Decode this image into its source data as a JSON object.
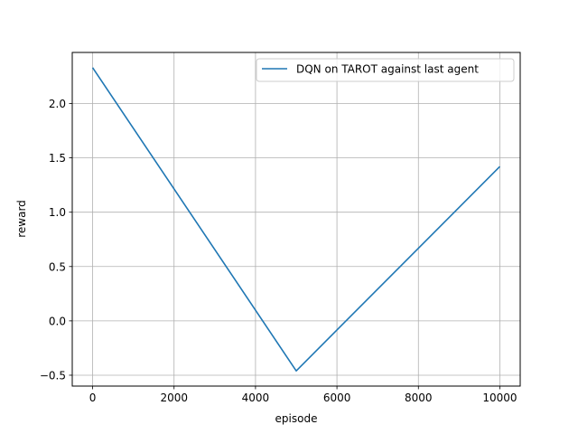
{
  "chart_data": {
    "type": "line",
    "title": "",
    "xlabel": "episode",
    "ylabel": "reward",
    "xlim": [
      -500,
      10500
    ],
    "ylim": [
      -0.6,
      2.47
    ],
    "xticks": [
      0,
      2000,
      4000,
      6000,
      8000,
      10000
    ],
    "yticks": [
      -0.5,
      0.0,
      0.5,
      1.0,
      1.5,
      2.0
    ],
    "grid": true,
    "legend_position": "top-right",
    "series": [
      {
        "name": "DQN on TAROT against last agent",
        "color": "#1f77b4",
        "x": [
          0,
          5000,
          10000
        ],
        "y": [
          2.33,
          -0.46,
          1.42
        ]
      }
    ]
  }
}
